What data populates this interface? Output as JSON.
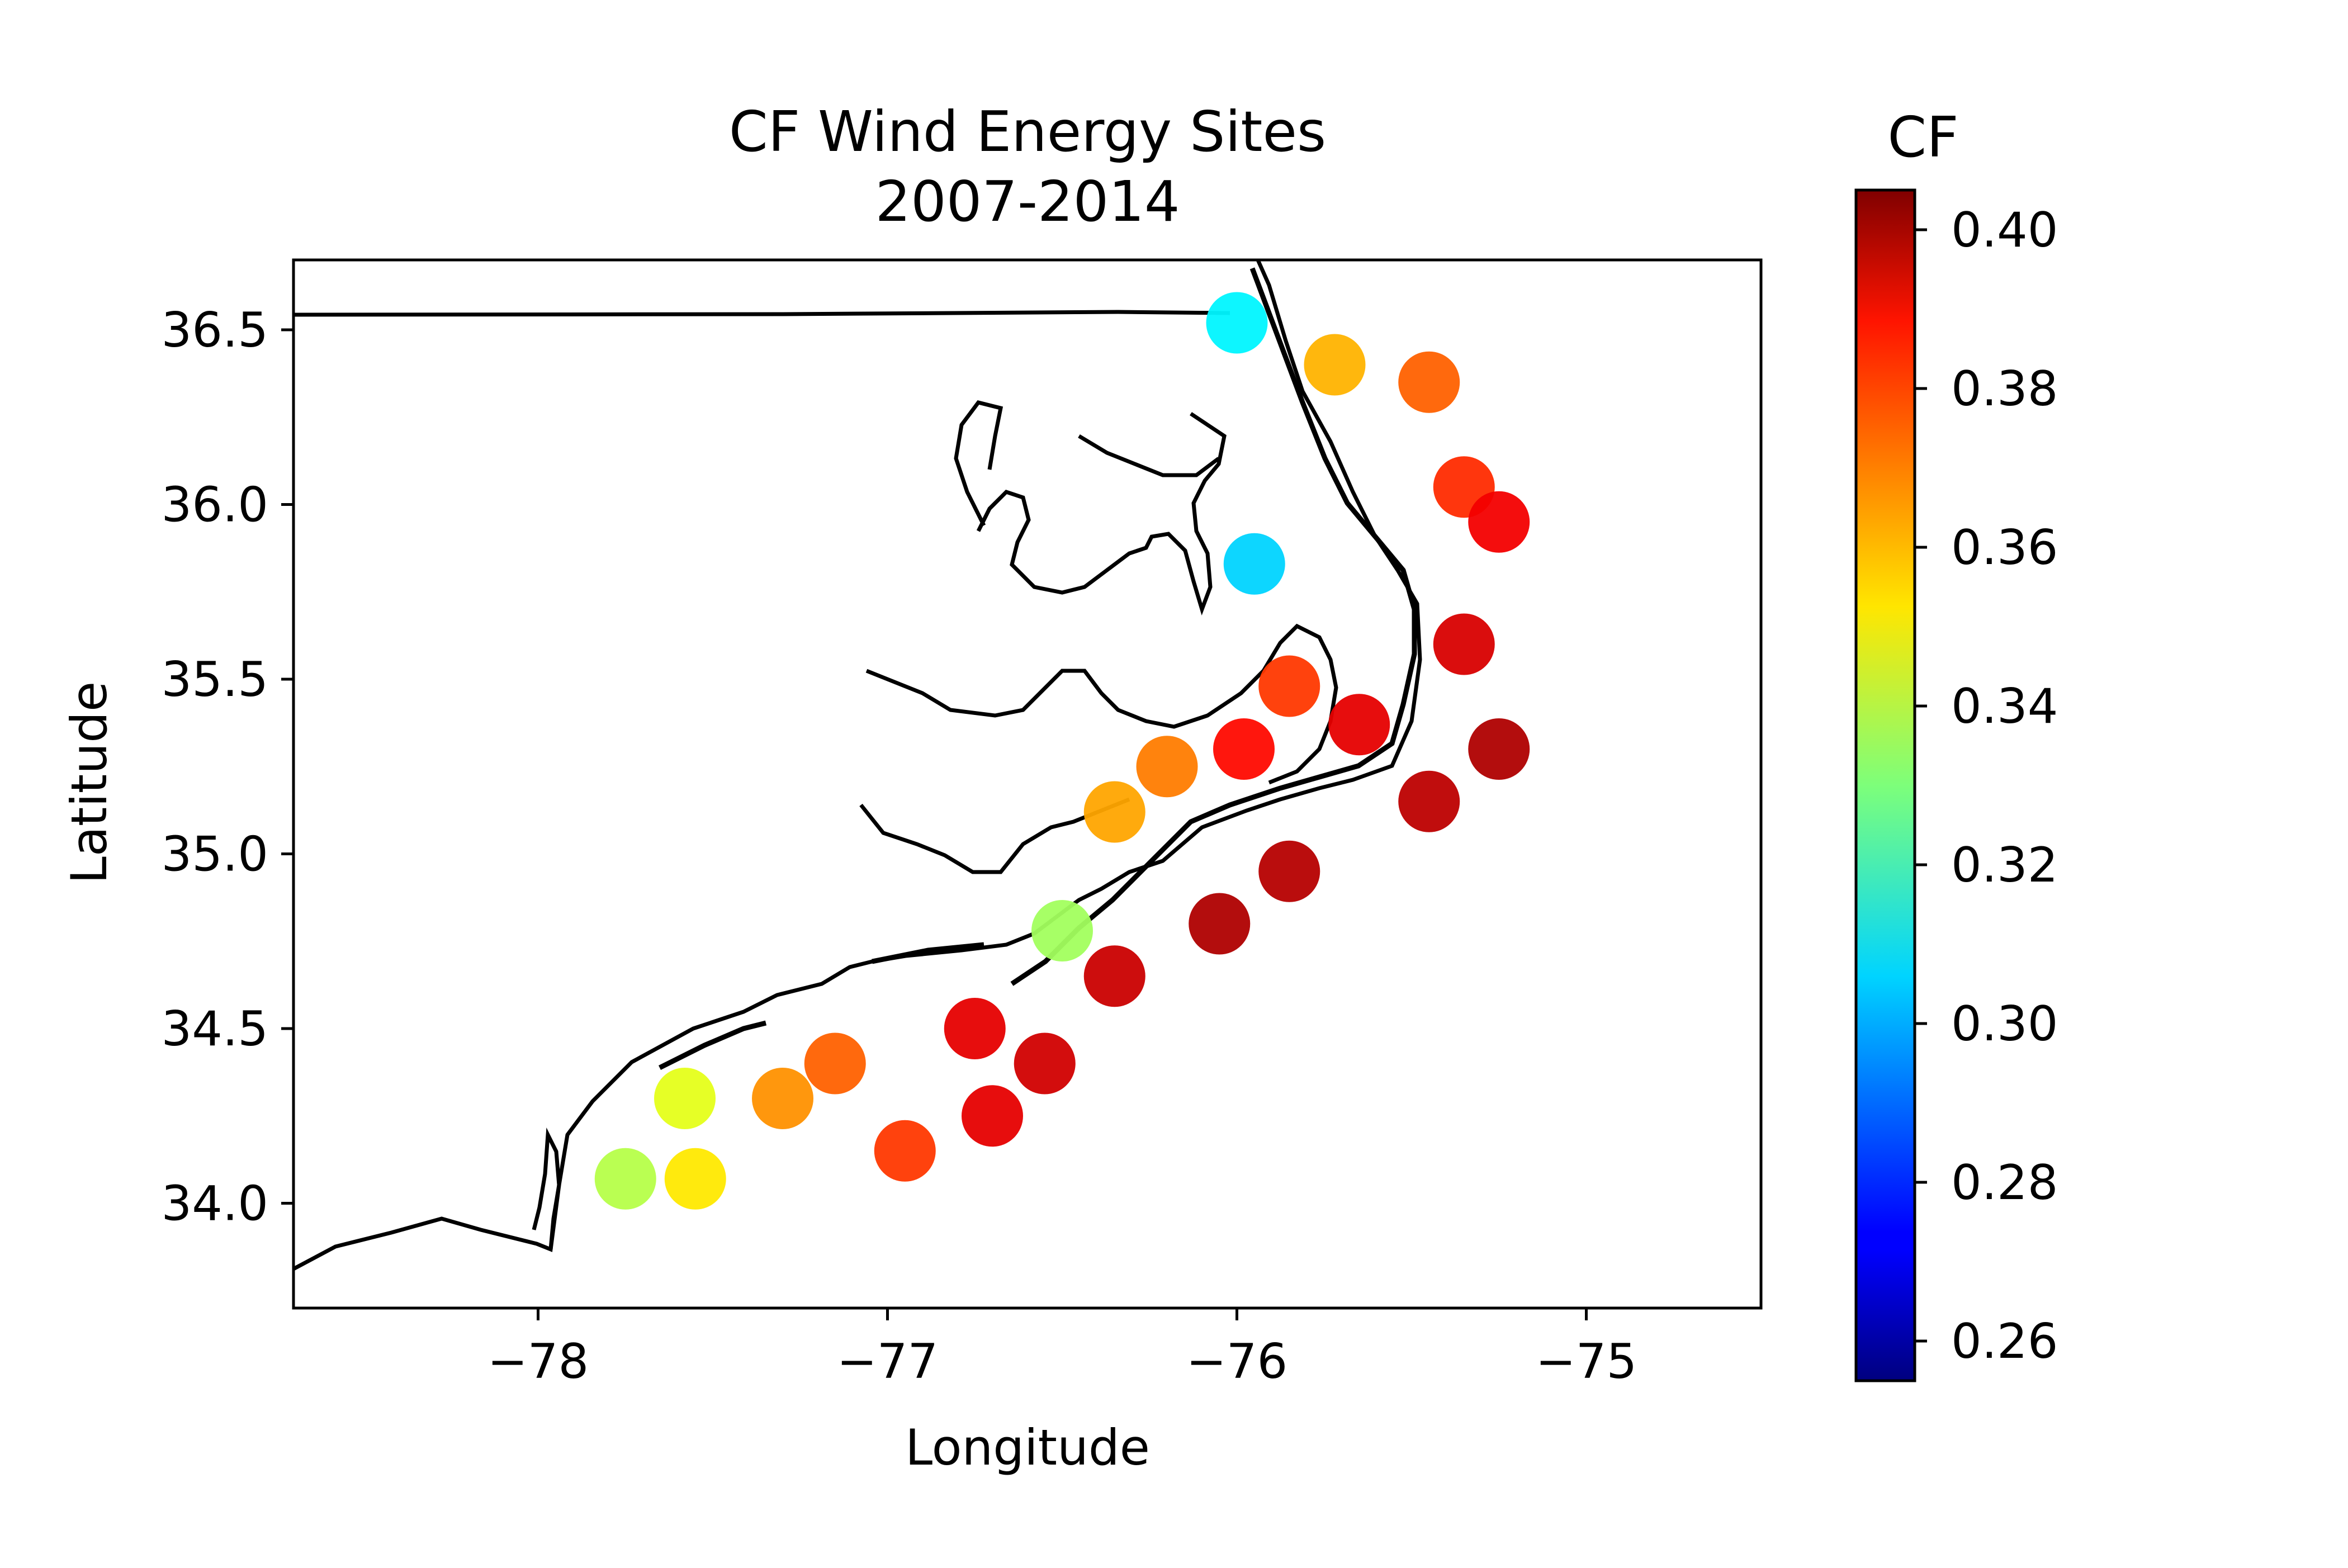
{
  "chart_data": {
    "type": "scatter",
    "title": "CF Wind Energy Sites",
    "subtitle": "2007-2014",
    "xlabel": "Longitude",
    "ylabel": "Latitude",
    "xlim": [
      -78.7,
      -74.5
    ],
    "ylim": [
      33.7,
      36.7
    ],
    "xticks": [
      -78,
      -77,
      -76,
      -75
    ],
    "xtick_labels": [
      "−78",
      "−77",
      "−76",
      "−75"
    ],
    "yticks": [
      34.0,
      34.5,
      35.0,
      35.5,
      36.0,
      36.5
    ],
    "ytick_labels": [
      "34.0",
      "34.5",
      "35.0",
      "35.5",
      "36.0",
      "36.5"
    ],
    "grid": false,
    "colorbar": {
      "title": "CF",
      "colormap": "jet",
      "range": [
        0.255,
        0.405
      ],
      "ticks": [
        0.26,
        0.28,
        0.3,
        0.32,
        0.34,
        0.36,
        0.38,
        0.4
      ],
      "tick_labels": [
        "0.26",
        "0.28",
        "0.30",
        "0.32",
        "0.34",
        "0.36",
        "0.38",
        "0.40"
      ]
    },
    "site_clusters": [
      {
        "lon": -75.45,
        "lat": 36.35,
        "cf": 0.372
      },
      {
        "lon": -75.35,
        "lat": 36.05,
        "cf": 0.38
      },
      {
        "lon": -75.25,
        "lat": 35.95,
        "cf": 0.388
      },
      {
        "lon": -75.35,
        "lat": 35.6,
        "cf": 0.392
      },
      {
        "lon": -75.25,
        "lat": 35.3,
        "cf": 0.398
      },
      {
        "lon": -75.45,
        "lat": 35.15,
        "cf": 0.396
      },
      {
        "lon": -75.85,
        "lat": 34.95,
        "cf": 0.397
      },
      {
        "lon": -76.05,
        "lat": 34.8,
        "cf": 0.398
      },
      {
        "lon": -76.35,
        "lat": 34.65,
        "cf": 0.394
      },
      {
        "lon": -76.55,
        "lat": 34.4,
        "cf": 0.393
      },
      {
        "lon": -76.7,
        "lat": 34.25,
        "cf": 0.39
      },
      {
        "lon": -76.95,
        "lat": 34.15,
        "cf": 0.378
      },
      {
        "lon": -77.15,
        "lat": 34.4,
        "cf": 0.372
      },
      {
        "lon": -77.3,
        "lat": 34.3,
        "cf": 0.365
      },
      {
        "lon": -76.75,
        "lat": 34.5,
        "cf": 0.39
      },
      {
        "lon": -77.55,
        "lat": 34.07,
        "cf": 0.352
      },
      {
        "lon": -77.75,
        "lat": 34.07,
        "cf": 0.338
      },
      {
        "lon": -77.58,
        "lat": 34.3,
        "cf": 0.345
      },
      {
        "lon": -76.35,
        "lat": 35.12,
        "cf": 0.362
      },
      {
        "lon": -76.2,
        "lat": 35.25,
        "cf": 0.368
      },
      {
        "lon": -75.98,
        "lat": 35.3,
        "cf": 0.385
      },
      {
        "lon": -75.85,
        "lat": 35.48,
        "cf": 0.378
      },
      {
        "lon": -75.65,
        "lat": 35.37,
        "cf": 0.39
      },
      {
        "lon": -75.95,
        "lat": 35.83,
        "cf": 0.305
      },
      {
        "lon": -76.0,
        "lat": 36.52,
        "cf": 0.31
      },
      {
        "lon": -75.72,
        "lat": 36.4,
        "cf": 0.36
      },
      {
        "lon": -76.5,
        "lat": 34.78,
        "cf": 0.335
      }
    ]
  }
}
